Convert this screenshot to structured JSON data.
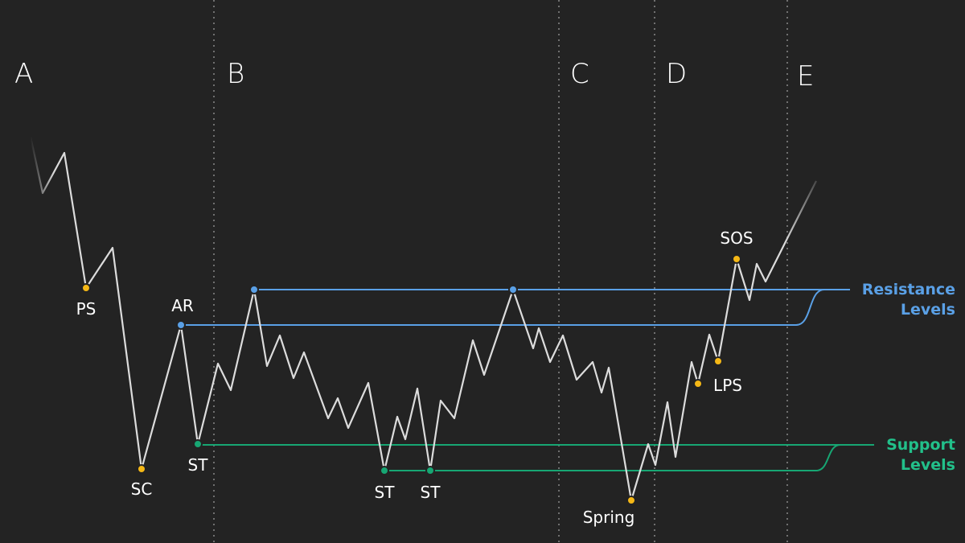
{
  "phases": [
    "A",
    "B",
    "C",
    "D",
    "E"
  ],
  "events": {
    "ps": "PS",
    "sc": "SC",
    "ar": "AR",
    "st1": "ST",
    "st2": "ST",
    "st3": "ST",
    "spring": "Spring",
    "lps": "LPS",
    "sos": "SOS"
  },
  "levels": {
    "resistance": "Resistance Levels",
    "support": "Support Levels"
  }
}
